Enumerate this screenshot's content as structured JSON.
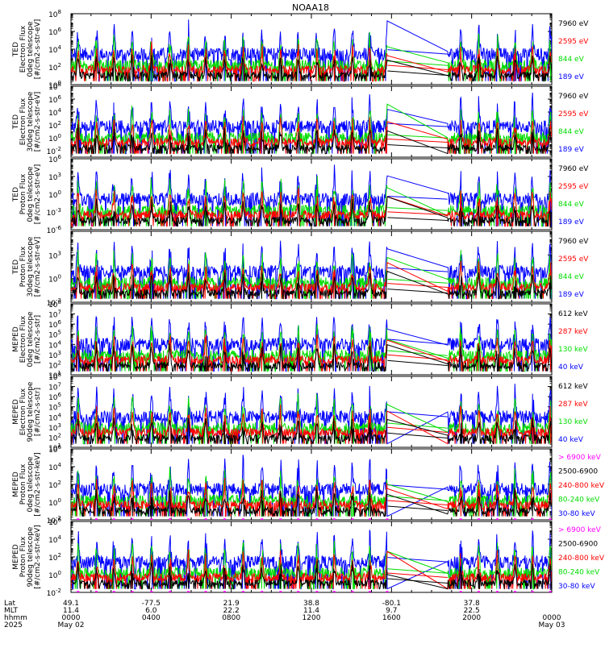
{
  "title": "NOAA18",
  "panels": [
    {
      "ylabel": [
        "TED",
        "Electron Flux",
        "0deg telescope",
        "[#/cm2-s-str-eV]"
      ],
      "ylim_exp": [
        0,
        8
      ],
      "ticks": [
        {
          "e": "0",
          "show": true
        },
        {
          "e": "2",
          "show": true
        },
        {
          "e": "4",
          "show": true
        },
        {
          "e": "6",
          "show": true
        },
        {
          "e": "8",
          "show": true
        }
      ],
      "legend": [
        {
          "label": "7960 eV",
          "color": "#000000"
        },
        {
          "label": "2595 eV",
          "color": "#ff0000"
        },
        {
          "label": "844 eV",
          "color": "#00dd00"
        },
        {
          "label": "189 eV",
          "color": "#0000ff"
        }
      ]
    },
    {
      "ylabel": [
        "TED",
        "Electron Flux",
        "30deg telescope",
        "[#/cm2-s-str-eV]"
      ],
      "ylim_exp": [
        -3,
        8
      ],
      "ticks": [
        {
          "e": "-2",
          "show": true
        },
        {
          "e": "0",
          "show": true
        },
        {
          "e": "2",
          "show": true
        },
        {
          "e": "4",
          "show": true
        },
        {
          "e": "6",
          "show": true
        },
        {
          "e": "8",
          "show": true
        }
      ],
      "legend": [
        {
          "label": "7960 eV",
          "color": "#000000"
        },
        {
          "label": "2595 eV",
          "color": "#ff0000"
        },
        {
          "label": "844 eV",
          "color": "#00dd00"
        },
        {
          "label": "189 eV",
          "color": "#0000ff"
        }
      ]
    },
    {
      "ylabel": [
        "TED",
        "Proton Flux",
        "0deg telescope",
        "[#/cm2-s-str-eV]"
      ],
      "ylim_exp": [
        -6,
        6
      ],
      "ticks": [
        {
          "e": "-6",
          "show": true
        },
        {
          "e": "-3",
          "show": true
        },
        {
          "e": "0",
          "show": true
        },
        {
          "e": "3",
          "show": true
        },
        {
          "e": "6",
          "show": true
        }
      ],
      "legend": [
        {
          "label": "7960 eV",
          "color": "#000000"
        },
        {
          "label": "2595 eV",
          "color": "#ff0000"
        },
        {
          "label": "844 eV",
          "color": "#00dd00"
        },
        {
          "label": "189 eV",
          "color": "#0000ff"
        }
      ]
    },
    {
      "ylabel": [
        "TED",
        "Proton Flux",
        "30deg telescope",
        "[#/cm2-s-str-eV]"
      ],
      "ylim_exp": [
        -3,
        6
      ],
      "ticks": [
        {
          "e": "-3",
          "show": true
        },
        {
          "e": "0",
          "show": true
        },
        {
          "e": "3",
          "show": true
        },
        {
          "e": "6",
          "show": false
        }
      ],
      "legend": [
        {
          "label": "7960 eV",
          "color": "#000000"
        },
        {
          "label": "2595 eV",
          "color": "#ff0000"
        },
        {
          "label": "844 eV",
          "color": "#00dd00"
        },
        {
          "label": "189 eV",
          "color": "#0000ff"
        }
      ]
    },
    {
      "ylabel": [
        "MEPED",
        "Electron Flux",
        "0deg telescope",
        "[#/cm2-s-str]"
      ],
      "ylim_exp": [
        1,
        8
      ],
      "ticks": [
        {
          "e": "1",
          "show": true
        },
        {
          "e": "2",
          "show": true
        },
        {
          "e": "3",
          "show": true
        },
        {
          "e": "4",
          "show": true
        },
        {
          "e": "5",
          "show": true
        },
        {
          "e": "6",
          "show": true
        },
        {
          "e": "7",
          "show": true
        },
        {
          "e": "8",
          "show": true
        }
      ],
      "legend": [
        {
          "label": "612 keV",
          "color": "#000000"
        },
        {
          "label": "287 keV",
          "color": "#ff0000"
        },
        {
          "label": "130 keV",
          "color": "#00dd00"
        },
        {
          "label": "40 keV",
          "color": "#0000ff"
        }
      ]
    },
    {
      "ylabel": [
        "MEPED",
        "Electron Flux",
        "90deg telescope",
        "[#/cm2-s-str]"
      ],
      "ylim_exp": [
        1,
        8
      ],
      "ticks": [
        {
          "e": "1",
          "show": true
        },
        {
          "e": "2",
          "show": true
        },
        {
          "e": "3",
          "show": true
        },
        {
          "e": "4",
          "show": true
        },
        {
          "e": "5",
          "show": true
        },
        {
          "e": "6",
          "show": true
        },
        {
          "e": "7",
          "show": true
        },
        {
          "e": "8",
          "show": true
        }
      ],
      "legend": [
        {
          "label": "612 keV",
          "color": "#000000"
        },
        {
          "label": "287 keV",
          "color": "#ff0000"
        },
        {
          "label": "130 keV",
          "color": "#00dd00"
        },
        {
          "label": "40 keV",
          "color": "#0000ff"
        }
      ]
    },
    {
      "ylabel": [
        "MEPED",
        "Proton Flux",
        "0deg telescope",
        "[#/cm2-s-str-keV]"
      ],
      "ylim_exp": [
        -2,
        6
      ],
      "ticks": [
        {
          "e": "-2",
          "show": true
        },
        {
          "e": "0",
          "show": true
        },
        {
          "e": "2",
          "show": true
        },
        {
          "e": "4",
          "show": true
        },
        {
          "e": "6",
          "show": true
        }
      ],
      "legend": [
        {
          "label": "> 6900 keV",
          "color": "#ff00ff"
        },
        {
          "label": "2500-6900",
          "color": "#000000"
        },
        {
          "label": "240-800 keV",
          "color": "#ff0000"
        },
        {
          "label": "80-240 keV",
          "color": "#00dd00"
        },
        {
          "label": "30-80 keV",
          "color": "#0000ff"
        }
      ]
    },
    {
      "ylabel": [
        "MEPED",
        "Proton Flux",
        "90deg telescope",
        "[#/cm2-s-str-keV]"
      ],
      "ylim_exp": [
        -2,
        6
      ],
      "ticks": [
        {
          "e": "-2",
          "show": true
        },
        {
          "e": "0",
          "show": true
        },
        {
          "e": "2",
          "show": true
        },
        {
          "e": "4",
          "show": true
        },
        {
          "e": "6",
          "show": true
        }
      ],
      "legend": [
        {
          "label": "> 6900 keV",
          "color": "#ff00ff"
        },
        {
          "label": "2500-6900",
          "color": "#000000"
        },
        {
          "label": "240-800 keV",
          "color": "#ff0000"
        },
        {
          "label": "80-240 keV",
          "color": "#00dd00"
        },
        {
          "label": "30-80 keV",
          "color": "#0000ff"
        }
      ]
    }
  ],
  "xaxis": {
    "row_labels": [
      "Lat",
      "MLT",
      "hhmm",
      "2025"
    ],
    "columns": [
      {
        "lat": "49.1",
        "mlt": "11.4",
        "hhmm": "0000",
        "date": "May 02"
      },
      {
        "lat": "-77.5",
        "mlt": "6.0",
        "hhmm": "0400",
        "date": ""
      },
      {
        "lat": "21.9",
        "mlt": "22.2",
        "hhmm": "0800",
        "date": ""
      },
      {
        "lat": "38.8",
        "mlt": "11.4",
        "hhmm": "1200",
        "date": ""
      },
      {
        "lat": "-80.1",
        "mlt": "9.7",
        "hhmm": "1600",
        "date": ""
      },
      {
        "lat": "37.8",
        "mlt": "22.5",
        "hhmm": "2000",
        "date": ""
      },
      {
        "lat": "",
        "mlt": "",
        "hhmm": "0000",
        "date": "May 03"
      }
    ]
  },
  "chart_data": {
    "type": "line",
    "title": "NOAA18",
    "x_unit": "UT hours since 2025 May 02 00:00",
    "xlim": [
      0,
      24
    ],
    "y_scale": "log",
    "data_gap_hours": [
      15.8,
      18.8
    ],
    "colors": {
      "black": "#000000",
      "red": "#ff0000",
      "green": "#00dd00",
      "blue": "#0000ff",
      "magenta": "#ff00ff"
    }
  }
}
